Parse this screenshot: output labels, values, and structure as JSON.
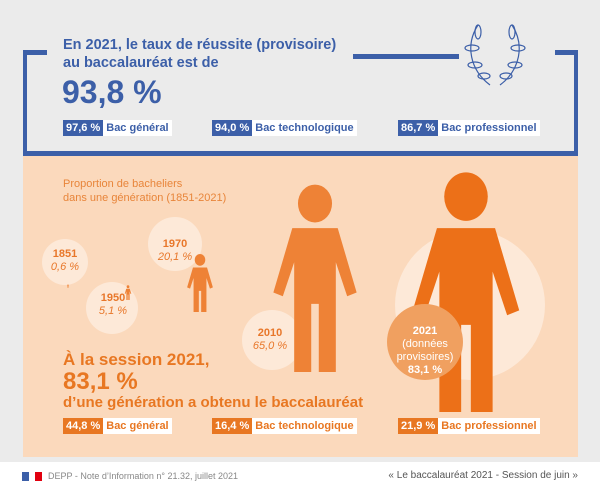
{
  "header": {
    "title": "En 2021, le taux de réussite (provisoire) au baccalauréat est de",
    "rate": "93,8 %"
  },
  "success_rates": [
    {
      "value": "97,6 %",
      "label": "Bac général"
    },
    {
      "value": "94,0 %",
      "label": "Bac technologique"
    },
    {
      "value": "86,7 %",
      "label": "Bac professionnel"
    }
  ],
  "generation": {
    "title_line1": "Proportion de bacheliers",
    "title_line2": "dans une génération (1851-2021)",
    "points": [
      {
        "year": "1851",
        "value": "0,6 %",
        "pct": 0.6
      },
      {
        "year": "1950",
        "value": "5,1 %",
        "pct": 5.1
      },
      {
        "year": "1970",
        "value": "20,1 %",
        "pct": 20.1
      },
      {
        "year": "2010",
        "value": "65,0 %",
        "pct": 65.0
      },
      {
        "year": "2021",
        "note1": "(données",
        "note2": "provisoires)",
        "value": "83,1 %",
        "pct": 83.1
      }
    ]
  },
  "session": {
    "line1": "À la session 2021,",
    "rate": "83,1 %",
    "line3": "d’une génération a obtenu le baccalauréat"
  },
  "generation_shares": [
    {
      "value": "44,8 %",
      "label": "Bac général"
    },
    {
      "value": "16,4 %",
      "label": "Bac technologique"
    },
    {
      "value": "21,9 %",
      "label": "Bac professionnel"
    }
  ],
  "footer": {
    "source": "DEPP - Note d’Information n° 21.32, juillet 2021",
    "title": "« Le baccalauréat 2021 - Session de juin »"
  },
  "colors": {
    "blue": "#3c5fa8",
    "orange": "#e87722",
    "light_orange": "#fbd9bc"
  }
}
